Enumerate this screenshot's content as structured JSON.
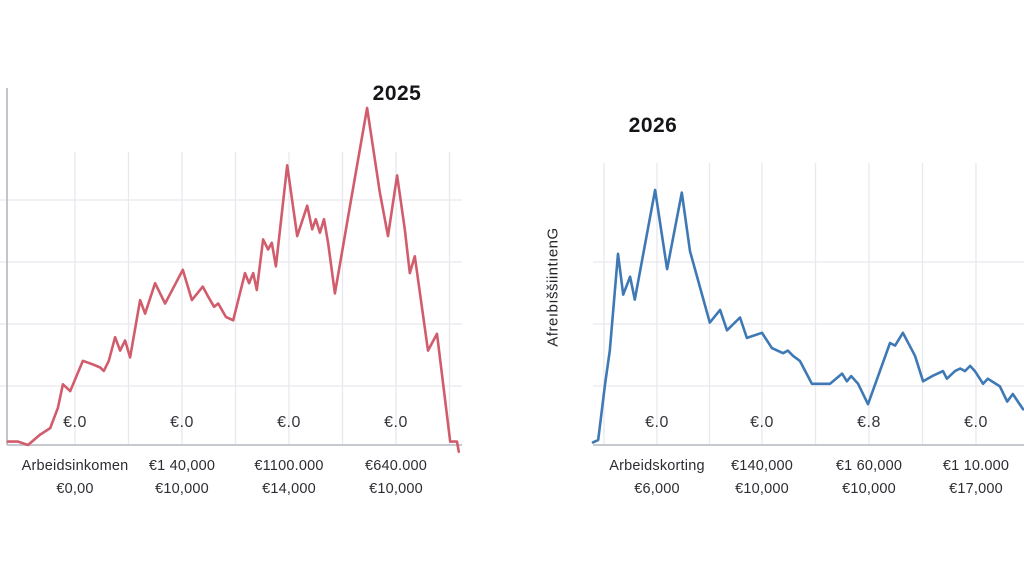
{
  "figure": {
    "background": "#ffffff",
    "grid_color": "#e9e8ee",
    "axis_color": "#c7c9d0",
    "text_color": "#2c2c33"
  },
  "chart_data": [
    {
      "type": "line",
      "title": "2025",
      "color": "#d15c6c",
      "legend": "none",
      "grid": "on",
      "inline_tick_labels": [
        "€.0",
        "€.0",
        "€.0",
        "€.0"
      ],
      "x_labels_row1": [
        "Arbeidsinkomen",
        "€1 40,000",
        "€1100.000",
        "€640.000"
      ],
      "x_labels_row2": [
        "€0,00",
        "€10,000",
        "€14,000",
        "€10,000"
      ],
      "ylabel": "",
      "x_scale_note": "relative 0-100 across plot width (axis labels are garbled euro amounts)",
      "y_scale_note": "relative 0-100 of series maximum (no numeric y-axis shown)",
      "points": [
        [
          0,
          1
        ],
        [
          2.2,
          1
        ],
        [
          4.4,
          0
        ],
        [
          7,
          3
        ],
        [
          9.3,
          5
        ],
        [
          11,
          11
        ],
        [
          12.1,
          18
        ],
        [
          13.7,
          16
        ],
        [
          16.5,
          25
        ],
        [
          18.5,
          24
        ],
        [
          20.3,
          23
        ],
        [
          21.1,
          22
        ],
        [
          22.2,
          25
        ],
        [
          23.6,
          32
        ],
        [
          24.7,
          28
        ],
        [
          25.8,
          31
        ],
        [
          26.9,
          26
        ],
        [
          29.1,
          43
        ],
        [
          30.2,
          39
        ],
        [
          32.4,
          48
        ],
        [
          34.6,
          42
        ],
        [
          38.5,
          52
        ],
        [
          40.5,
          43
        ],
        [
          42.9,
          47
        ],
        [
          44.1,
          44
        ],
        [
          45.4,
          41
        ],
        [
          46.3,
          42
        ],
        [
          48,
          38
        ],
        [
          49.6,
          37
        ],
        [
          52.2,
          51
        ],
        [
          53.1,
          48
        ],
        [
          54,
          51
        ],
        [
          54.8,
          46
        ],
        [
          56.2,
          61
        ],
        [
          57.3,
          58
        ],
        [
          58.1,
          60
        ],
        [
          59,
          53
        ],
        [
          61.5,
          83
        ],
        [
          63.7,
          62
        ],
        [
          65.9,
          71
        ],
        [
          67,
          64
        ],
        [
          67.8,
          67
        ],
        [
          68.7,
          63
        ],
        [
          69.6,
          67
        ],
        [
          70.5,
          60
        ],
        [
          72,
          45
        ],
        [
          75.6,
          73
        ],
        [
          79.1,
          100
        ],
        [
          81.9,
          75
        ],
        [
          83.7,
          62
        ],
        [
          85.7,
          80
        ],
        [
          87.4,
          64
        ],
        [
          88.5,
          51
        ],
        [
          89.6,
          56
        ],
        [
          92.5,
          28
        ],
        [
          94.5,
          33
        ],
        [
          97.4,
          1
        ],
        [
          98.9,
          1
        ],
        [
          99.3,
          -2
        ]
      ]
    },
    {
      "type": "line",
      "title": "2026",
      "color": "#3e79b6",
      "legend": "none",
      "grid": "on",
      "inline_tick_labels": [
        "€.0",
        "€.0",
        "€.8",
        "€.0"
      ],
      "x_labels_row1": [
        "Arbeidskorting",
        "€140,000",
        "€1 60,000",
        "€1 10.000"
      ],
      "x_labels_row2": [
        "€6,000",
        "€10,000",
        "€10,000",
        "€17,000"
      ],
      "ylabel": "AfreıbıššiintıenG",
      "x_scale_note": "relative 0-100 across plot width (axis labels are garbled euro amounts)",
      "y_scale_note": "relative 0-100 of series maximum (no numeric y-axis shown)",
      "points": [
        [
          0,
          1
        ],
        [
          1.2,
          2
        ],
        [
          2.8,
          24
        ],
        [
          3.9,
          37
        ],
        [
          5.8,
          75
        ],
        [
          7,
          59
        ],
        [
          8.6,
          66
        ],
        [
          9.7,
          57
        ],
        [
          14.4,
          100
        ],
        [
          17.2,
          69
        ],
        [
          20.6,
          99
        ],
        [
          22.5,
          76
        ],
        [
          27.1,
          48
        ],
        [
          29.5,
          53
        ],
        [
          31.1,
          45
        ],
        [
          34.1,
          50
        ],
        [
          35.7,
          42
        ],
        [
          39.2,
          44
        ],
        [
          41.5,
          38
        ],
        [
          44.1,
          36
        ],
        [
          45.2,
          37
        ],
        [
          46.4,
          35
        ],
        [
          48,
          33
        ],
        [
          50.8,
          24
        ],
        [
          52.2,
          24
        ],
        [
          55,
          24
        ],
        [
          57.8,
          28
        ],
        [
          58.9,
          25
        ],
        [
          59.9,
          27
        ],
        [
          61.5,
          24
        ],
        [
          63.8,
          16
        ],
        [
          68.9,
          40
        ],
        [
          70.1,
          39
        ],
        [
          71.9,
          44
        ],
        [
          74.7,
          35
        ],
        [
          76.6,
          25
        ],
        [
          78.7,
          27
        ],
        [
          81.2,
          29
        ],
        [
          82.1,
          26
        ],
        [
          84,
          29
        ],
        [
          85.2,
          30
        ],
        [
          86.3,
          29
        ],
        [
          87.5,
          31
        ],
        [
          88.6,
          29
        ],
        [
          90.5,
          24
        ],
        [
          91.6,
          26
        ],
        [
          94.4,
          23
        ],
        [
          96.1,
          17
        ],
        [
          97.4,
          20
        ],
        [
          99.8,
          14
        ]
      ]
    }
  ]
}
